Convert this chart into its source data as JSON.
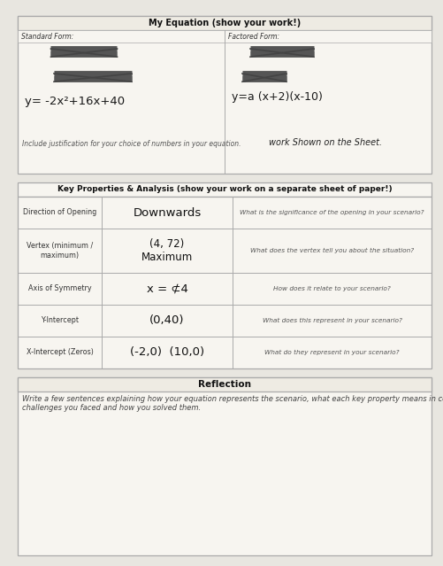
{
  "page_bg": "#e8e6e0",
  "box_bg": "#f7f5f0",
  "title_bar_bg": "#eeebe3",
  "border_color": "#aaaaaa",
  "title_my_equation": "My Equation (show your work!)",
  "standard_form_label": "Standard Form:",
  "factored_form_label": "Factored Form:",
  "standard_eq1": "y= -2x²+16x+40",
  "factored_eq1": "y=a (x+2)(x-10)",
  "factored_eq2": "work Shown on the Sheet.",
  "justify_label": "Include justification for your choice of numbers in your equation.",
  "title_key_props": "Key Properties & Analysis (show your work on a separate sheet of paper!)",
  "row1_label": "Direction of Opening",
  "row1_value": "Downwards",
  "row1_question": "What is the significance of the opening in your scenario?",
  "row2_label": "Vertex (minimum /\nmaximum)",
  "row2_value1": "(4, 72)",
  "row2_value2": "Maximum",
  "row2_question": "What does the vertex tell you about the situation?",
  "row3_label": "Axis of Symmetry",
  "row3_value": "x = ⊄4",
  "row3_question": "How does it relate to your scenario?",
  "row4_label": "Y-Intercept",
  "row4_value": "(0,40)",
  "row4_question": "What does this represent in your scenario?",
  "row5_label": "X-Intercept (Zeros)",
  "row5_value": "(-2,0)  (10,0)",
  "row5_question": "What do they represent in your scenario?",
  "reflection_title": "Reflection",
  "reflection_prompt": "Write a few sentences explaining how your equation represents the scenario, what each key property means in context, and any\nchallenges you faced and how you solved them."
}
